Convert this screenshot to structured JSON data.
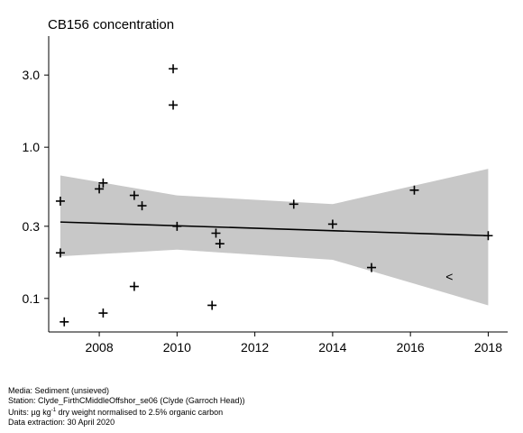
{
  "chart_data": {
    "type": "scatter",
    "title": "CB156 concentration",
    "xlabel": "",
    "ylabel": "",
    "y_scale": "log",
    "xlim": [
      2006.7,
      2018.5
    ],
    "ylim": [
      0.06,
      5.0
    ],
    "x_ticks": [
      2008,
      2010,
      2012,
      2014,
      2016,
      2018
    ],
    "x_tick_labels": [
      "2008",
      "2010",
      "2012",
      "2014",
      "2016",
      "2018"
    ],
    "y_ticks": [
      0.1,
      0.3,
      1.0,
      3.0
    ],
    "y_tick_labels": [
      "0.1",
      "0.3",
      "1.0",
      "3.0"
    ],
    "points": [
      {
        "x": 2007.0,
        "y": 0.44
      },
      {
        "x": 2007.0,
        "y": 0.2
      },
      {
        "x": 2007.1,
        "y": 0.07
      },
      {
        "x": 2008.0,
        "y": 0.53
      },
      {
        "x": 2008.1,
        "y": 0.58
      },
      {
        "x": 2008.1,
        "y": 0.08
      },
      {
        "x": 2008.9,
        "y": 0.48
      },
      {
        "x": 2008.9,
        "y": 0.12
      },
      {
        "x": 2009.1,
        "y": 0.41
      },
      {
        "x": 2009.9,
        "y": 3.3
      },
      {
        "x": 2009.9,
        "y": 1.9
      },
      {
        "x": 2010.0,
        "y": 0.3
      },
      {
        "x": 2010.9,
        "y": 0.09
      },
      {
        "x": 2011.0,
        "y": 0.27
      },
      {
        "x": 2011.1,
        "y": 0.23
      },
      {
        "x": 2013.0,
        "y": 0.42
      },
      {
        "x": 2014.0,
        "y": 0.31
      },
      {
        "x": 2015.0,
        "y": 0.16
      },
      {
        "x": 2016.1,
        "y": 0.52
      },
      {
        "x": 2018.0,
        "y": 0.26
      }
    ],
    "less_than_points": [
      {
        "x": 2017.0,
        "y": 0.14,
        "marker": "<"
      }
    ],
    "trend": {
      "x": [
        2007.0,
        2018.0
      ],
      "y": [
        0.32,
        0.26
      ]
    },
    "confidence_band": {
      "x": [
        2007.0,
        2010.0,
        2014.0,
        2018.0
      ],
      "upper": [
        0.65,
        0.48,
        0.42,
        0.72
      ],
      "lower": [
        0.19,
        0.21,
        0.18,
        0.09
      ]
    },
    "colors": {
      "band": "#c8c8c8",
      "trend": "#000000",
      "points": "#000000"
    }
  },
  "footer": {
    "media": "Media: Sediment (unsieved)",
    "station": "Station: Clyde_FirthCMiddleOffshor_se06 (Clyde (Garroch Head))",
    "units_prefix": "Units:  µg kg",
    "units_sup": "-1",
    "units_suffix": " dry weight normalised to 2.5% organic carbon",
    "extraction": "Data extraction: 30 April 2020"
  }
}
